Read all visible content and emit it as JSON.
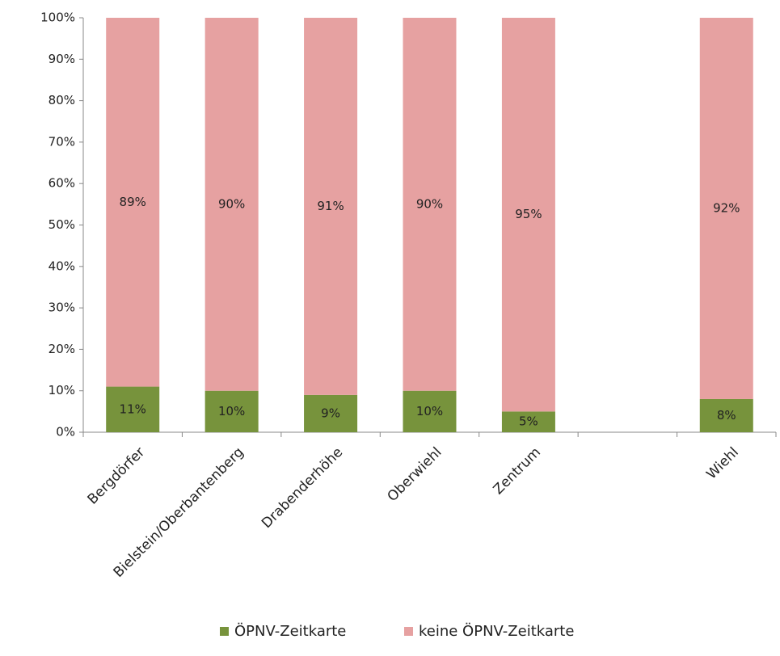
{
  "chart_data": {
    "type": "stacked_bar",
    "categories": [
      "Bergdörfer",
      "Bielstein/Oberbantenberg",
      "Drabenderhöhe",
      "Oberwiehl",
      "Zentrum",
      null,
      "Wiehl"
    ],
    "series": [
      {
        "name": "ÖPNV-Zeitkarte",
        "color": "#77933c",
        "values": [
          11,
          10,
          9,
          10,
          5,
          null,
          8
        ],
        "value_labels": [
          "11%",
          "10%",
          "9%",
          "10%",
          "5%",
          null,
          "8%"
        ]
      },
      {
        "name": "keine ÖPNV-Zeitkarte",
        "color": "#e6a1a1",
        "values": [
          89,
          90,
          91,
          90,
          95,
          null,
          92
        ],
        "value_labels": [
          "89%",
          "90%",
          "91%",
          "90%",
          "95%",
          null,
          "92%"
        ]
      }
    ],
    "ylim": [
      0,
      100
    ],
    "yticks": [
      {
        "value": 0,
        "label": "0%"
      },
      {
        "value": 10,
        "label": "10%"
      },
      {
        "value": 20,
        "label": "20%"
      },
      {
        "value": 30,
        "label": "30%"
      },
      {
        "value": 40,
        "label": "40%"
      },
      {
        "value": 50,
        "label": "50%"
      },
      {
        "value": 60,
        "label": "60%"
      },
      {
        "value": 70,
        "label": "70%"
      },
      {
        "value": 80,
        "label": "80%"
      },
      {
        "value": 90,
        "label": "90%"
      },
      {
        "value": 100,
        "label": "100%"
      }
    ],
    "legend": "bottom"
  }
}
